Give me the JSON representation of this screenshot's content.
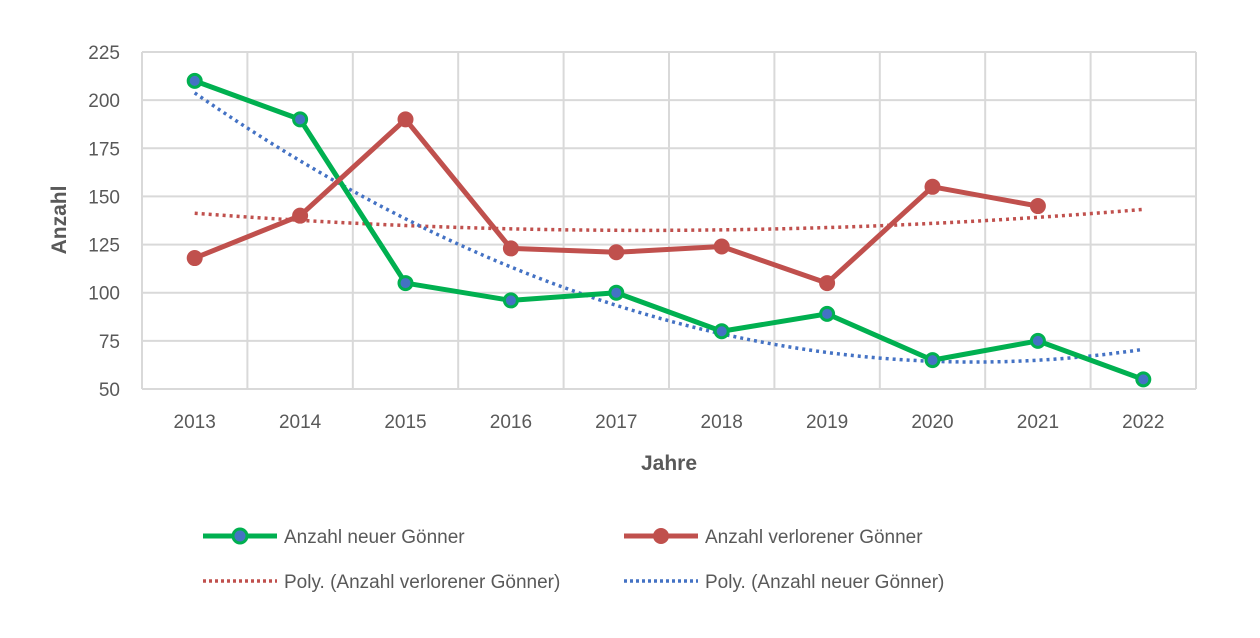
{
  "chart_data": {
    "type": "line",
    "title": "",
    "xlabel": "Jahre",
    "ylabel": "Anzahl",
    "ylim": [
      50,
      225
    ],
    "yticks": [
      50,
      75,
      100,
      125,
      150,
      175,
      200,
      225
    ],
    "categories": [
      "2013",
      "2014",
      "2015",
      "2016",
      "2017",
      "2018",
      "2019",
      "2020",
      "2021",
      "2022"
    ],
    "grid": true,
    "legend_position": "bottom",
    "series": [
      {
        "name": "Anzahl neuer Gönner",
        "color": "#00B050",
        "marker_color": "#4472C4",
        "values": [
          210,
          190,
          105,
          96,
          100,
          80,
          89,
          65,
          75,
          55
        ]
      },
      {
        "name": "Anzahl verlorener Gönner",
        "color": "#C0504D",
        "values": [
          118,
          140,
          190,
          123,
          121,
          124,
          105,
          155,
          145,
          null
        ]
      }
    ],
    "trendlines": [
      {
        "name": "Poly. (Anzahl verlorener Gönner)",
        "color": "#C0504D",
        "of_series": 1,
        "order": 2
      },
      {
        "name": "Poly. (Anzahl neuer Gönner)",
        "color": "#4472C4",
        "of_series": 0,
        "order": 2
      }
    ]
  }
}
